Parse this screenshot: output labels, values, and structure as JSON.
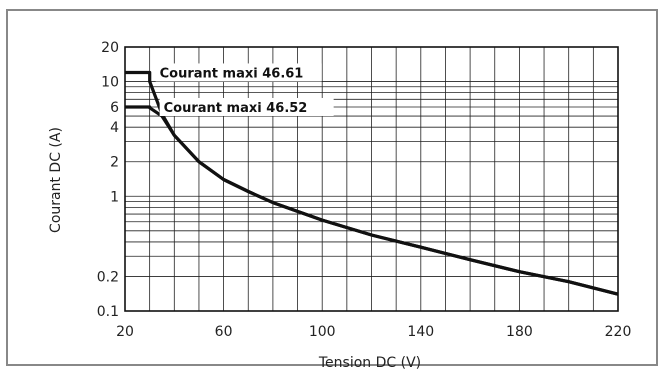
{
  "chart_data": {
    "type": "line",
    "title": "",
    "xlabel": "Tension DC (V)",
    "ylabel": "Courant DC (A)",
    "x_scale": "linear",
    "y_scale": "log",
    "xlim": [
      20,
      220
    ],
    "ylim": [
      0.1,
      20
    ],
    "x_ticks": [
      20,
      60,
      100,
      140,
      180,
      220
    ],
    "x_tick_labels": [
      "20",
      "60",
      "100",
      "140",
      "180",
      "220"
    ],
    "y_ticks": [
      0.1,
      0.2,
      1,
      2,
      4,
      6,
      10,
      20
    ],
    "y_tick_labels": [
      "0.1",
      "0.2",
      "1",
      "2",
      "4",
      "6",
      "10",
      "20"
    ],
    "grid": true,
    "series": [
      {
        "name": "Courant maxi 46.61",
        "x": [
          20,
          30,
          30,
          35,
          40,
          50,
          60,
          70,
          80,
          100,
          120,
          140,
          160,
          180,
          200,
          220
        ],
        "y": [
          12,
          12,
          10,
          5.2,
          3.4,
          2.0,
          1.4,
          1.1,
          0.88,
          0.62,
          0.46,
          0.36,
          0.28,
          0.22,
          0.18,
          0.14
        ]
      },
      {
        "name": "Courant maxi 46.52",
        "x": [
          20,
          30,
          30,
          35,
          40,
          50,
          60,
          70,
          80,
          100,
          120,
          140,
          160,
          180,
          200,
          220
        ],
        "y": [
          6,
          6,
          5.9,
          5.0,
          3.4,
          2.0,
          1.4,
          1.1,
          0.88,
          0.62,
          0.46,
          0.36,
          0.28,
          0.22,
          0.18,
          0.14
        ]
      }
    ],
    "annotations": [
      {
        "text": "Courant maxi 46.61",
        "series": 0
      },
      {
        "text": "Courant maxi 46.52",
        "series": 1
      }
    ]
  }
}
